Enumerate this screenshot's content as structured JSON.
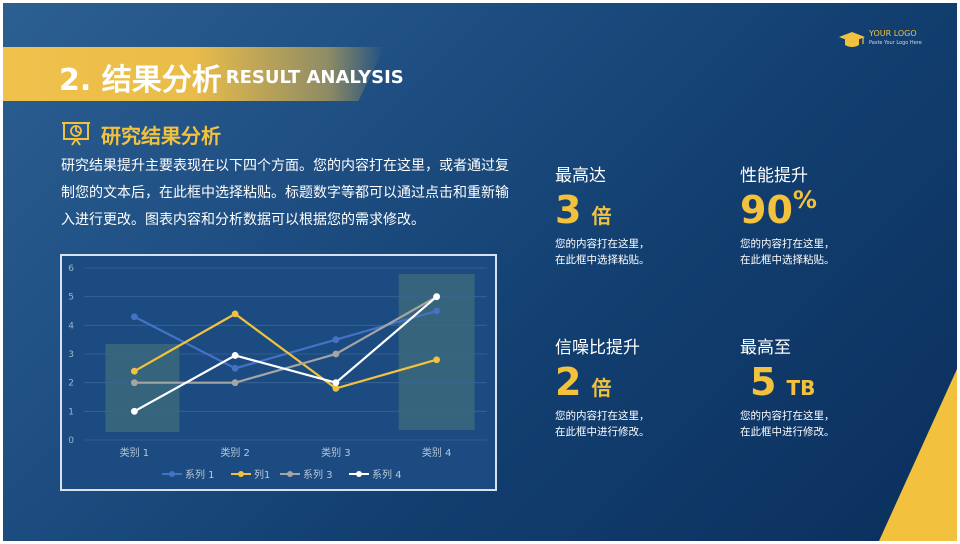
{
  "logo": {
    "name": "YOUR LOGO",
    "tagline": "Paste Your Logo Here"
  },
  "header": {
    "number_title": "2. 结果分析",
    "en_title": "RESULT ANALYSIS"
  },
  "section": {
    "icon": "presentation-chart-icon",
    "title": "研究结果分析",
    "body": "研究结果提升主要表现在以下四个方面。您的内容打在这里，或者通过复制您的文本后，在此框中选择粘贴。标题数字等都可以通过点击和重新输入进行更改。图表内容和分析数据可以根据您的需求修改。"
  },
  "stats": [
    {
      "label": "最高达",
      "value": "3",
      "unit": "倍",
      "desc1": "您的内容打在这里，",
      "desc2": "在此框中选择粘贴。"
    },
    {
      "label": "性能提升",
      "value": "90",
      "unit": "%",
      "desc1": "您的内容打在这里，",
      "desc2": "在此框中选择粘贴。"
    },
    {
      "label": "信噪比提升",
      "value": "2",
      "unit": "倍",
      "desc1": "您的内容打在这里，",
      "desc2": "在此框中进行修改。"
    },
    {
      "label": "最高至",
      "value": "5",
      "unit": "TB",
      "desc1": "您的内容打在这里，",
      "desc2": "在此框中进行修改。"
    }
  ],
  "colors": {
    "accent": "#f2c23e",
    "background": "#123f70",
    "series1": "#4472c4",
    "series2": "#f2c23e",
    "series3": "#a5a5a5",
    "series4": "#ffffff"
  },
  "chart_data": {
    "type": "line",
    "categories": [
      "类别 1",
      "类别 2",
      "类别 3",
      "类别 4"
    ],
    "ylim": [
      0,
      6
    ],
    "yticks": [
      "0",
      "1",
      "2",
      "3",
      "4",
      "5",
      "6"
    ],
    "grid": true,
    "legend": "bottom",
    "highlight_categories": [
      "类别 1",
      "类别 4"
    ],
    "series": [
      {
        "name": "系列 1",
        "values": [
          4.3,
          2.5,
          3.5,
          4.5
        ]
      },
      {
        "name": "列1",
        "values": [
          2.4,
          4.4,
          1.8,
          2.8
        ]
      },
      {
        "name": "系列 3",
        "values": [
          2,
          2,
          3,
          5
        ]
      },
      {
        "name": "系列 4",
        "values": [
          1,
          2.95,
          2,
          5
        ]
      }
    ]
  }
}
